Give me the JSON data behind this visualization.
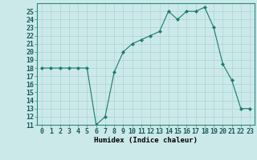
{
  "xlabel": "Humidex (Indice chaleur)",
  "ylabel": "",
  "x": [
    0,
    1,
    2,
    3,
    4,
    5,
    6,
    7,
    8,
    9,
    10,
    11,
    12,
    13,
    14,
    15,
    16,
    17,
    18,
    19,
    20,
    21,
    22,
    23
  ],
  "y": [
    18,
    18,
    18,
    18,
    18,
    18,
    11,
    12,
    17.5,
    20,
    21,
    21.5,
    22,
    22.5,
    25,
    24,
    25,
    25,
    25.5,
    23,
    18.5,
    16.5,
    13,
    13
  ],
  "ylim": [
    11,
    26
  ],
  "yticks": [
    11,
    12,
    13,
    14,
    15,
    16,
    17,
    18,
    19,
    20,
    21,
    22,
    23,
    24,
    25
  ],
  "line_color": "#1a7a6e",
  "marker": "D",
  "marker_size": 2.2,
  "bg_color": "#cce9e9",
  "grid_color": "#aad4d4",
  "label_fontsize": 6.5,
  "tick_fontsize": 6.0
}
